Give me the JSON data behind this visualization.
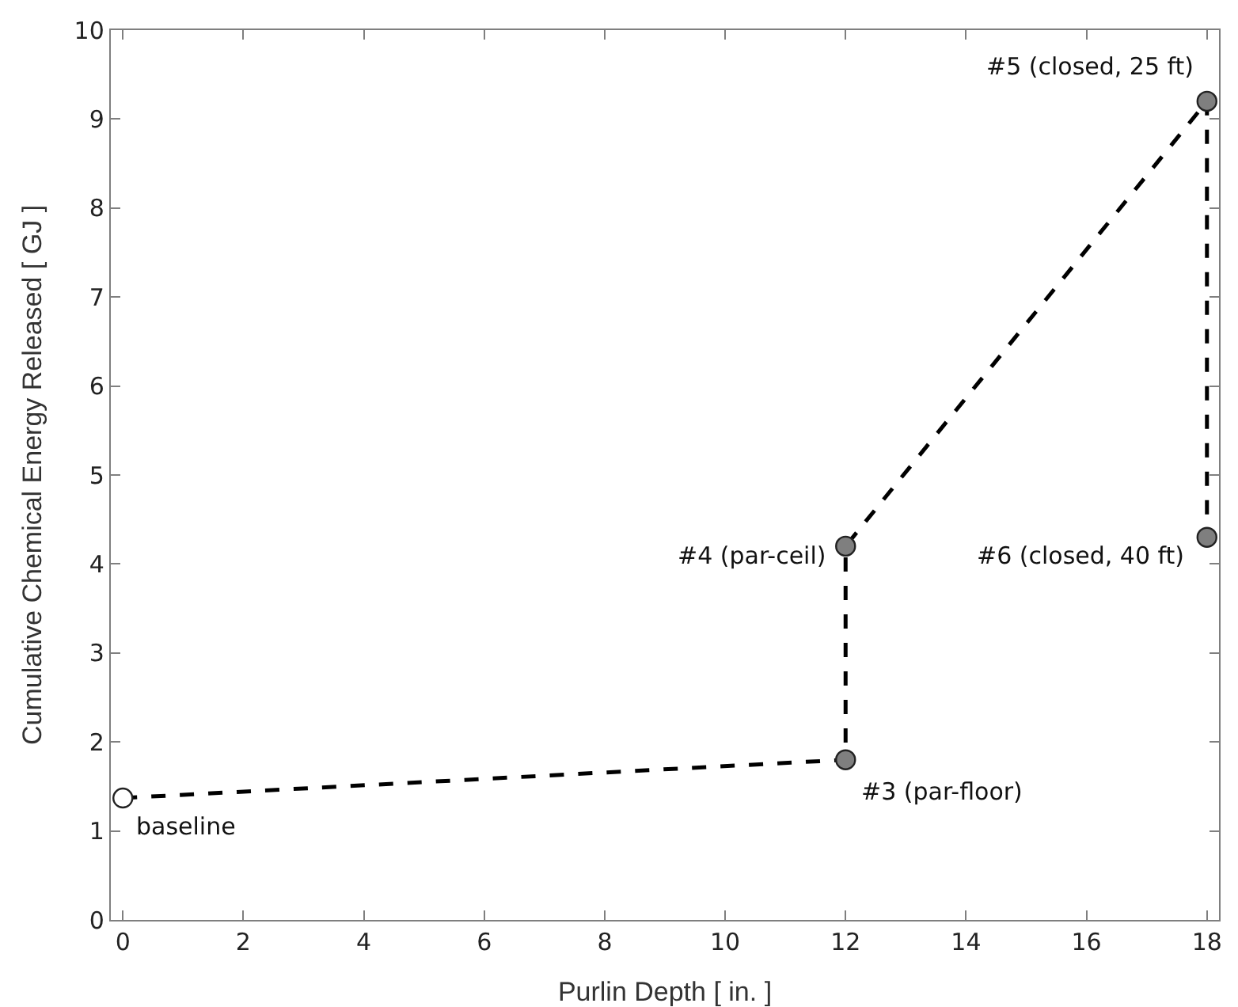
{
  "chart_data": {
    "type": "line",
    "xlabel": "Purlin Depth [ in. ]",
    "ylabel": "Cumulative Chemical Energy Released [ GJ ]",
    "x": [
      0,
      12,
      12,
      18,
      18
    ],
    "series": [
      {
        "color": "#000000",
        "colors": [
          "#ffffff",
          "#7f7f7f",
          "#7f7f7f",
          "#7f7f7f",
          "#7f7f7f"
        ],
        "values": [
          1.37,
          1.8,
          4.2,
          9.2,
          4.3
        ]
      }
    ],
    "annotations": [
      {
        "text": "baseline",
        "x": 0,
        "y": 1.37
      },
      {
        "text": "#3 (par-floor)",
        "x": 12,
        "y": 1.8
      },
      {
        "text": "#4 (par-ceil)",
        "x": 12,
        "y": 4.2
      },
      {
        "text": "#5 (closed, 25 ft)",
        "x": 18,
        "y": 9.2
      },
      {
        "text": "#6 (closed, 40 ft)",
        "x": 18,
        "y": 4.3
      }
    ],
    "xlim": [
      -0.2,
      18.2
    ],
    "xticks": [
      0,
      2,
      4,
      6,
      8,
      10,
      12,
      14,
      16,
      18
    ],
    "ylim": [
      0,
      10
    ],
    "yticks": [
      0,
      1,
      2,
      3,
      4,
      5,
      6,
      7,
      8,
      9,
      10
    ],
    "grid": false,
    "marker": "circle",
    "line_style": "dashed"
  }
}
